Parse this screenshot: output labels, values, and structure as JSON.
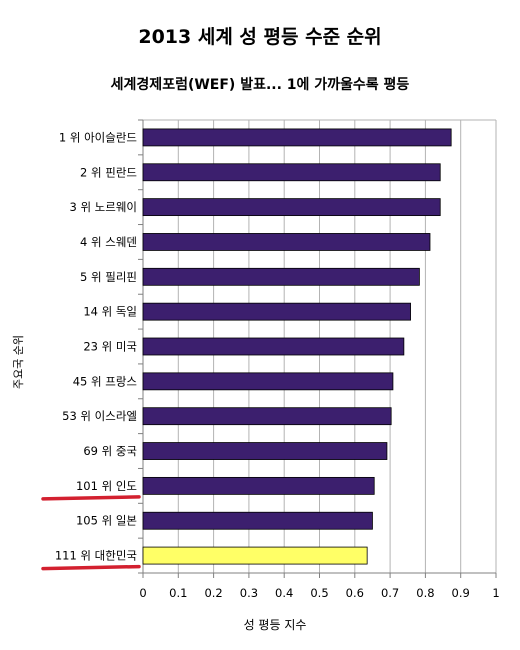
{
  "chart_data": {
    "type": "bar",
    "orientation": "horizontal",
    "title": "2013 세계 성 평등 수준 순위",
    "subtitle": "세계경제포럼(WEF) 발표... 1에 가까울수록 평등",
    "xlabel": "성 평등 지수",
    "ylabel": "주요국 순위",
    "xlim": [
      0,
      1
    ],
    "x_ticks": [
      "0",
      "0.1",
      "0.2",
      "0.3",
      "0.4",
      "0.5",
      "0.6",
      "0.7",
      "0.8",
      "0.9",
      "1"
    ],
    "grid": true,
    "categories": [
      "1 위 아이슬란드",
      "2 위 핀란드",
      "3 위 노르웨이",
      "4 위 스웨덴",
      "5 위 필리핀",
      "14 위 독일",
      "23 위 미국",
      "45 위 프랑스",
      "53 위 이스라엘",
      "69 위 중국",
      "101 위 인도",
      "105 위 일본",
      "111 위 대한민국"
    ],
    "values": [
      0.873,
      0.842,
      0.842,
      0.813,
      0.783,
      0.758,
      0.739,
      0.708,
      0.703,
      0.691,
      0.655,
      0.65,
      0.635
    ],
    "bar_color": "#3c1f6e",
    "highlight_index": 12,
    "highlight_color": "#ffff66",
    "underlined_categories": [
      10,
      12
    ],
    "underline_color": "#d3202f"
  }
}
